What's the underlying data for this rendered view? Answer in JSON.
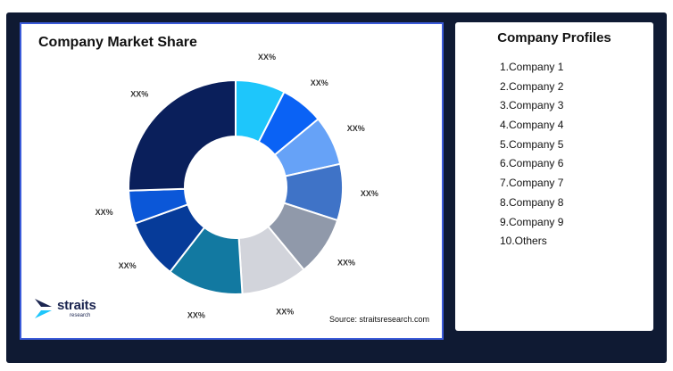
{
  "left_panel": {
    "title": "Company Market Share",
    "source": "Source: straitsresearch.com",
    "logo_text": "straits",
    "logo_subtext": "research"
  },
  "chart_data": {
    "type": "pie",
    "title": "Company Market Share",
    "slices": [
      {
        "label": "XX%",
        "value": 7.5,
        "color": "#1ec6fb"
      },
      {
        "label": "XX%",
        "value": 6.5,
        "color": "#0a62f5"
      },
      {
        "label": "XX%",
        "value": 7.5,
        "color": "#66a2f7"
      },
      {
        "label": "XX%",
        "value": 8.5,
        "color": "#3f73c7"
      },
      {
        "label": "XX%",
        "value": 9.0,
        "color": "#9099aa"
      },
      {
        "label": "XX%",
        "value": 10.0,
        "color": "#d2d4db"
      },
      {
        "label": "XX%",
        "value": 11.5,
        "color": "#1279a1"
      },
      {
        "label": "XX%",
        "value": 9.0,
        "color": "#063b99"
      },
      {
        "label": "XX%",
        "value": 5.0,
        "color": "#0b57d8"
      },
      {
        "label": "XX%",
        "value": 25.5,
        "color": "#0a1f5b"
      }
    ],
    "donut": true
  },
  "right_panel": {
    "title": "Company Profiles",
    "items": [
      "1.Company 1",
      "2.Company 2",
      "3.Company 3",
      "4.Company 4",
      "5.Company 5",
      "6.Company 6",
      "7.Company 7",
      "8.Company 8",
      "9.Company 9",
      "10.Others"
    ]
  },
  "colors": {
    "frame_background": "#0f1a33",
    "card_border": "#3b5bd9",
    "logo_color": "#1b2550"
  }
}
